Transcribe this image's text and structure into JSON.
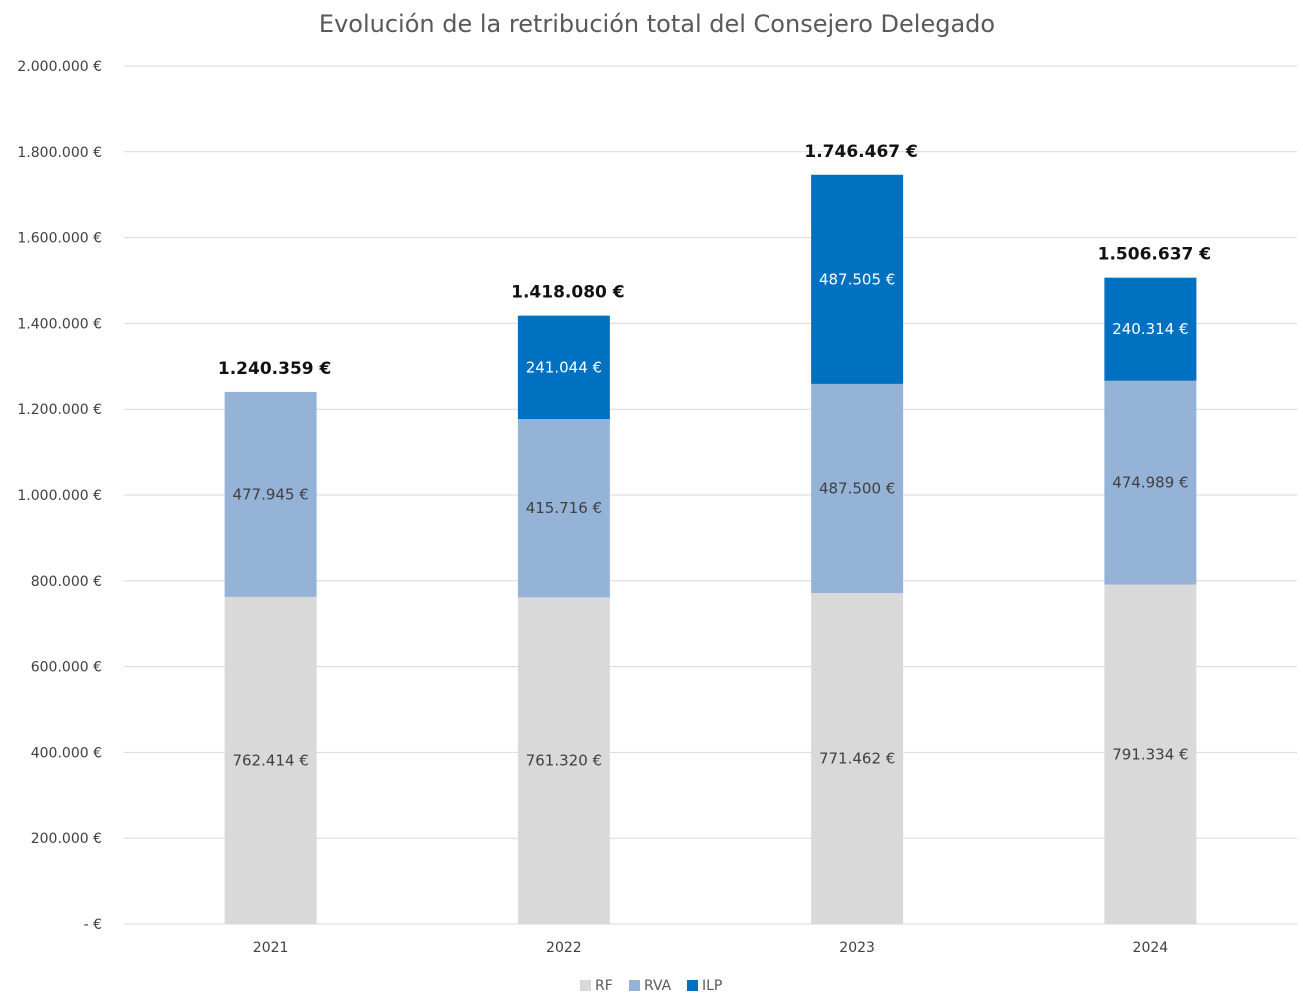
{
  "chart_data": {
    "type": "bar",
    "stacked": true,
    "title": "Evolución de la retribución total del Consejero Delegado",
    "categories": [
      "2021",
      "2022",
      "2023",
      "2024"
    ],
    "series": [
      {
        "name": "RF",
        "values": [
          762414,
          761320,
          771462,
          791334
        ],
        "labels": [
          "762.414 €",
          "761.320 €",
          "771.462 €",
          "791.334 €"
        ],
        "color": "#d9d9d9",
        "label_color": "#404040"
      },
      {
        "name": "RVA",
        "values": [
          477945,
          415716,
          487500,
          474989
        ],
        "labels": [
          "477.945 €",
          "415.716 €",
          "487.500 €",
          "474.989 €"
        ],
        "color": "#95b3d7",
        "label_color": "#404040"
      },
      {
        "name": "ILP",
        "values": [
          0,
          241044,
          487505,
          240314
        ],
        "labels": [
          "",
          "241.044 €",
          "487.505 €",
          "240.314 €"
        ],
        "color": "#0070c0",
        "label_color": "#ffffff"
      }
    ],
    "totals": [
      1240359,
      1418080,
      1746467,
      1506637
    ],
    "total_labels": [
      "1.240.359 €",
      "1.418.080 €",
      "1.746.467 €",
      "1.506.637 €"
    ],
    "ylim": [
      0,
      2000000
    ],
    "yticks": [
      0,
      200000,
      400000,
      600000,
      800000,
      1000000,
      1200000,
      1400000,
      1600000,
      1800000,
      2000000
    ],
    "ytick_labels": [
      "-  €",
      "200.000 €",
      "400.000 €",
      "600.000 €",
      "800.000 €",
      "1.000.000 €",
      "1.200.000 €",
      "1.400.000 €",
      "1.600.000 €",
      "1.800.000 €",
      "2.000.000 €"
    ],
    "grid": true,
    "gridline_color": "#d9d9d9",
    "legend_position": "bottom"
  }
}
